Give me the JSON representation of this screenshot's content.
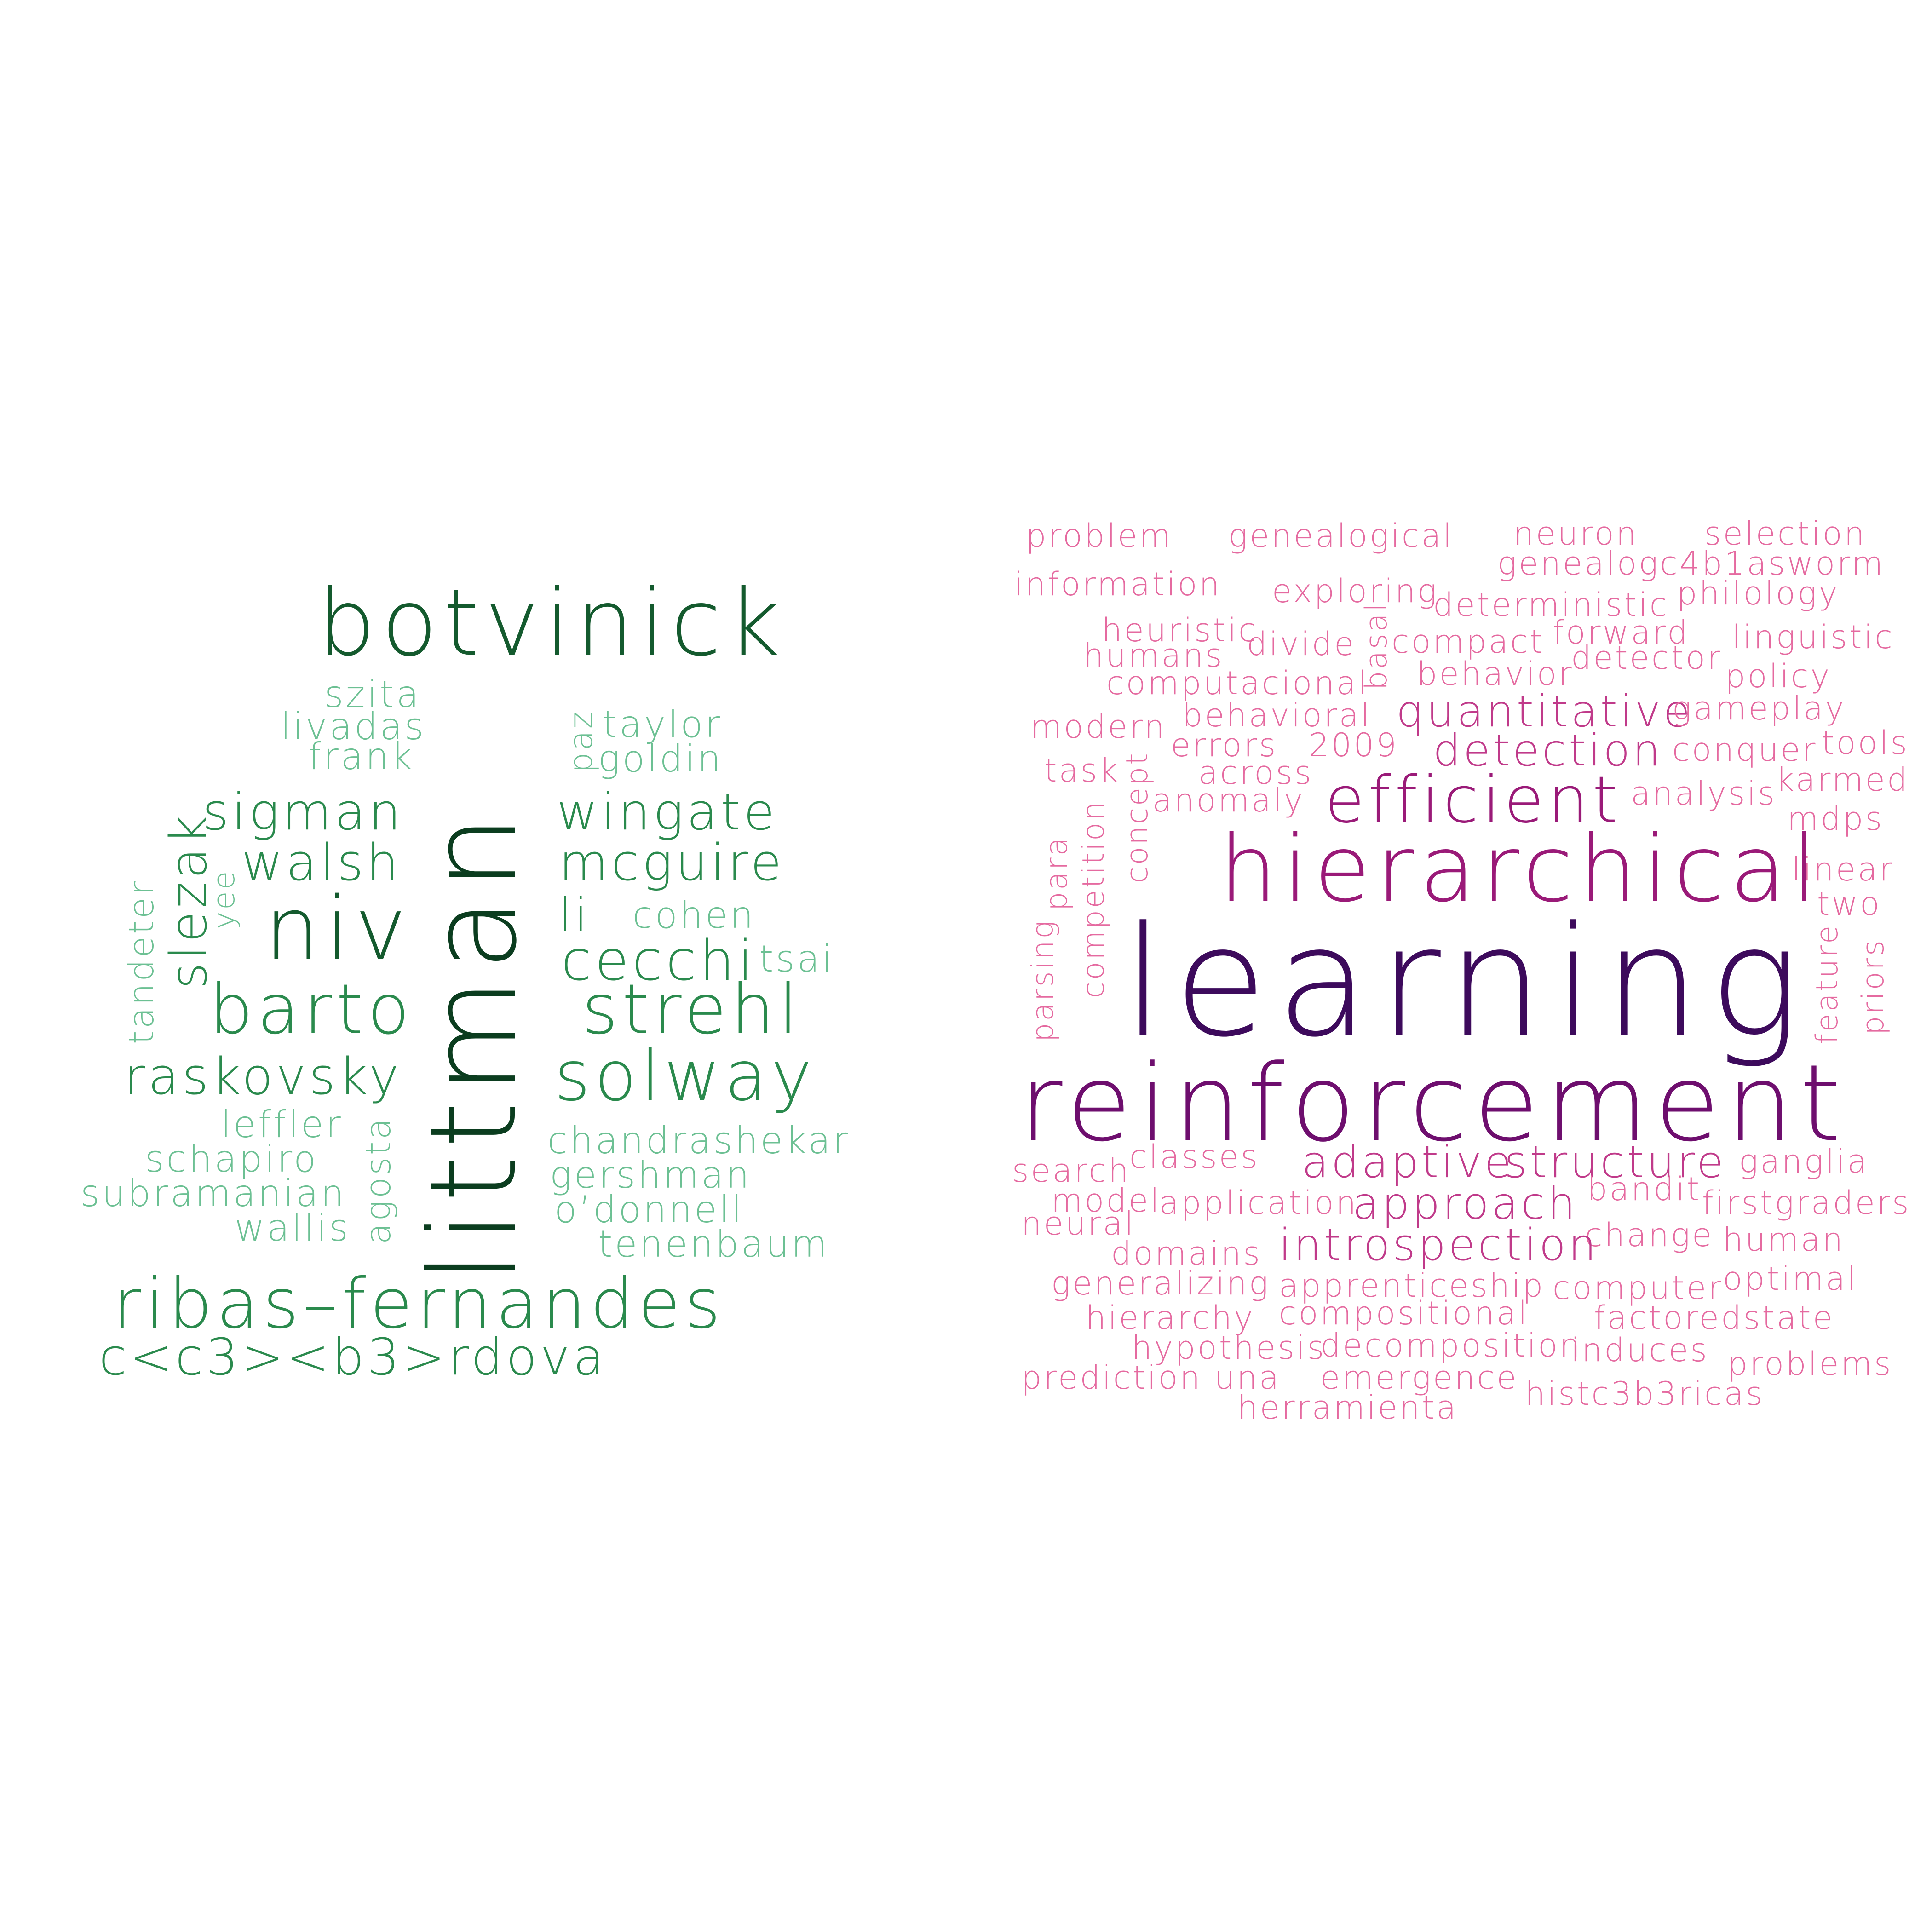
{
  "left_cloud": {
    "words": [
      "botvinick",
      "littman",
      "szita",
      "livadas",
      "frank",
      "paz",
      "taylor",
      "goldin",
      "sigman",
      "wingate",
      "slezak",
      "walsh",
      "mcguire",
      "yee",
      "tandeter",
      "niv",
      "li",
      "cohen",
      "cecchi",
      "tsai",
      "barto",
      "strehl",
      "raskovsky",
      "solway",
      "leffler",
      "agosta",
      "chandrashekar",
      "schapiro",
      "gershman",
      "subramanian",
      "o’donnell",
      "wallis",
      "tenenbaum",
      "ribas–fernandes",
      "c<c3><b3>rdova"
    ]
  },
  "right_cloud": {
    "words": [
      "problem",
      "genealogical",
      "neuron",
      "selection",
      "information",
      "genealogc4b1asworm",
      "exploring",
      "deterministic",
      "philology",
      "heuristic",
      "basal",
      "forward",
      "humans",
      "divide",
      "compact",
      "linguistic",
      "detector",
      "computacional",
      "behavior",
      "policy",
      "modern",
      "behavioral",
      "quantitative",
      "gameplay",
      "errors",
      "2009",
      "detection",
      "conquer",
      "tools",
      "task",
      "across",
      "karmed",
      "analysis",
      "anomaly",
      "efficient",
      "concept",
      "mdps",
      "competition",
      "hierarchical",
      "para",
      "linear",
      "two",
      "parsing",
      "learning",
      "feature",
      "priors",
      "reinforcement",
      "search",
      "classes",
      "adaptive",
      "structure",
      "ganglia",
      "model",
      "bandit",
      "application",
      "approach",
      "firstgraders",
      "neural",
      "change",
      "human",
      "domains",
      "introspection",
      "generalizing",
      "apprenticeship",
      "computer",
      "optimal",
      "hierarchy",
      "compositional",
      "factoredstate",
      "hypothesis",
      "decomposition",
      "induces",
      "problems",
      "prediction",
      "una",
      "emergence",
      "herramienta",
      "histc3b3ricas"
    ]
  },
  "colors": {
    "green_dark": "#0b3d1f",
    "green_mid": "#145a2e",
    "green": "#2a8a4d",
    "green_light": "#3fa868",
    "green_pale": "#6cc093",
    "purple_dark": "#3d0a5c",
    "plum": "#6e0e6e",
    "magenta": "#9a1a78",
    "pink": "#c03a8a",
    "pink_light": "#e56aa0"
  }
}
